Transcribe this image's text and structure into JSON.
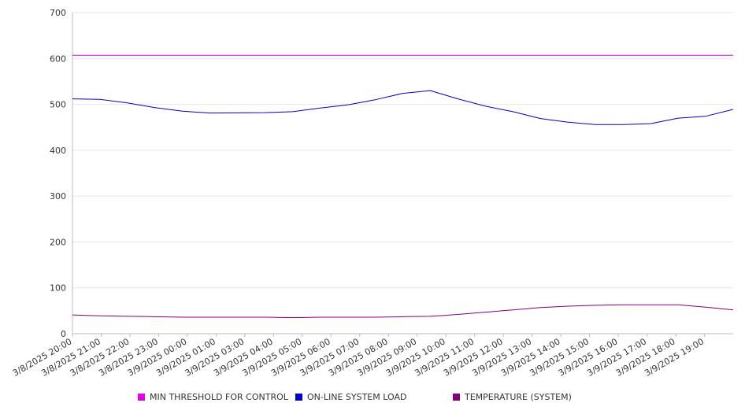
{
  "chart_data": {
    "type": "line",
    "ylim": [
      0,
      700
    ],
    "yticks": [
      "0",
      "100",
      "200",
      "300",
      "400",
      "500",
      "600",
      "700"
    ],
    "xlim": [
      "3/8/2025 20:00",
      "3/9/2025 20:00"
    ],
    "xtick_labels": [
      "3/8/2025 20:00",
      "3/8/2025 21:00",
      "3/8/2025 22:00",
      "3/8/2025 23:00",
      "3/9/2025 00:00",
      "3/9/2025 01:00",
      "3/9/2025 03:00",
      "3/9/2025 04:00",
      "3/9/2025 05:00",
      "3/9/2025 06:00",
      "3/9/2025 07:00",
      "3/9/2025 08:00",
      "3/9/2025 09:00",
      "3/9/2025 10:00",
      "3/9/2025 11:00",
      "3/9/2025 12:00",
      "3/9/2025 13:00",
      "3/9/2025 14:00",
      "3/9/2025 15:00",
      "3/9/2025 16:00",
      "3/9/2025 17:00",
      "3/9/2025 18:00",
      "3/9/2025 19:00"
    ],
    "grid": true,
    "legend": "bottom",
    "series": [
      {
        "name": "MIN THRESHOLD FOR CONTROL",
        "color": "#e000e0",
        "x": [
          "3/8/2025 20:00",
          "3/9/2025 20:00"
        ],
        "y": [
          607,
          607
        ]
      },
      {
        "name": "ON-LINE SYSTEM LOAD",
        "color": "#0000cc",
        "x": [
          "3/8/2025 20:00",
          "3/8/2025 21:00",
          "3/8/2025 22:00",
          "3/8/2025 23:00",
          "3/9/2025 00:00",
          "3/9/2025 01:00",
          "3/9/2025 03:00",
          "3/9/2025 04:00",
          "3/9/2025 05:00",
          "3/9/2025 06:00",
          "3/9/2025 07:00",
          "3/9/2025 08:00",
          "3/9/2025 09:00",
          "3/9/2025 10:00",
          "3/9/2025 11:00",
          "3/9/2025 12:00",
          "3/9/2025 13:00",
          "3/9/2025 14:00",
          "3/9/2025 15:00",
          "3/9/2025 16:00",
          "3/9/2025 17:00",
          "3/9/2025 18:00",
          "3/9/2025 19:00",
          "3/9/2025 20:00"
        ],
        "y": [
          512,
          511,
          503,
          493,
          485,
          481,
          482,
          484,
          492,
          499,
          510,
          524,
          530,
          512,
          496,
          484,
          469,
          461,
          456,
          456,
          458,
          470,
          474,
          489
        ]
      },
      {
        "name": "TEMPERATURE (SYSTEM)",
        "color": "#800080",
        "x": [
          "3/8/2025 20:00",
          "3/8/2025 21:00",
          "3/8/2025 22:00",
          "3/8/2025 23:00",
          "3/9/2025 00:00",
          "3/9/2025 01:00",
          "3/9/2025 03:00",
          "3/9/2025 04:00",
          "3/9/2025 05:00",
          "3/9/2025 06:00",
          "3/9/2025 07:00",
          "3/9/2025 08:00",
          "3/9/2025 09:00",
          "3/9/2025 10:00",
          "3/9/2025 11:00",
          "3/9/2025 12:00",
          "3/9/2025 13:00",
          "3/9/2025 14:00",
          "3/9/2025 15:00",
          "3/9/2025 16:00",
          "3/9/2025 17:00",
          "3/9/2025 18:00",
          "3/9/2025 19:00",
          "3/9/2025 20:00"
        ],
        "y": [
          41,
          39,
          38,
          37,
          36,
          36,
          36,
          35,
          36,
          36,
          36,
          37,
          38,
          42,
          47,
          52,
          57,
          60,
          62,
          63,
          63,
          63,
          58,
          52
        ]
      }
    ]
  }
}
